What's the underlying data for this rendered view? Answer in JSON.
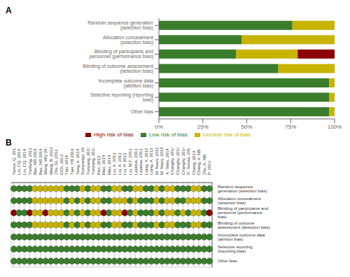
{
  "chart_data": [
    {
      "type": "bar",
      "title": "A",
      "orientation": "horizontal",
      "stacked": true,
      "grid": false,
      "legend": "bottom",
      "categories": [
        "Random sequence generation (selection bias)",
        "Allocation concealment (selection bias)",
        "Blinding of participants and personnel (performance bias)",
        "Blinding of outcome assessment (detection bias)",
        "Incomplete outcome data (attrition bias)",
        "Selective reporting (reporting bias)",
        "Other bias"
      ],
      "series": [
        {
          "name": "Low risk of bias",
          "color": "#3a7d2c",
          "values": [
            76,
            47,
            44,
            68,
            97,
            97,
            97
          ]
        },
        {
          "name": "Unclear risk of bias",
          "color": "#c8b400",
          "values": [
            24,
            53,
            35,
            32,
            3,
            3,
            3
          ]
        },
        {
          "name": "High risk of bias",
          "color": "#8b0000",
          "values": [
            0,
            0,
            21,
            0,
            0,
            0,
            0
          ]
        }
      ],
      "xlim": [
        0,
        100
      ],
      "xticks": [
        {
          "value": 0,
          "label": "0%"
        },
        {
          "value": 25,
          "label": "25%"
        },
        {
          "value": 50,
          "label": "50%"
        },
        {
          "value": 75,
          "label": "75%"
        },
        {
          "value": 100,
          "label": "100%"
        }
      ]
    },
    {
      "type": "dot_matrix",
      "title": "B",
      "grid": true,
      "colors": [
        "#c8b400",
        "#3a7d2c",
        "#8b0000"
      ],
      "x": [
        "Yance, Q. 2014",
        "Lin, CQ. 2014",
        "Lin, CQ. 2014",
        "Yunfang, 2013",
        "Bao, NR 2014",
        "Bao, NR 2014",
        "Wang, WQ 2014",
        "Wang, B. 2013",
        "Zhu, GL 2012",
        "OCh, 2013",
        "Tian, 2014",
        "Tian, YB 2014",
        "Yang, A. 2014",
        "Sumpango, 2013",
        "Yunpang, 2013",
        "Yunpang, 2013",
        "Pan, 2013",
        "Mao, 2014",
        "Mao, 2014",
        "Liu, A. 2013",
        "Liu, A. 2013",
        "Liu, P. 2013",
        "Liu, M.F. 2013",
        "Lapidus, 2013",
        "Lapidus, 2013",
        "Liang, A. 2012",
        "Liang, A. 2013",
        "M. Niazy, 2012",
        "M. Niazy, 2014",
        "A. Teles, 2014",
        "Changhy, 2014",
        "Changhy, 2014",
        "Changhy, 2014",
        "O. Sousa, 2014",
        "Cheng, 2014",
        "Cheng, A. NB",
        "Zhu, A. NB",
        "P. 2013"
      ],
      "y": [
        "Random sequence generation (selection bias)",
        "Allocation concealment (selection bias)",
        "Blinding of participants and personnel (performance bias)",
        "Blinding of outcome assessment (detection bias)",
        "Incomplete outcome data (attrition bias)",
        "Selective reporting (reporting bias)",
        "Other bias"
      ],
      "cells": [
        [
          1,
          1,
          1,
          1,
          0,
          0,
          0,
          0,
          0,
          0,
          1,
          1,
          1,
          0,
          1,
          0,
          0,
          1,
          1,
          0,
          0,
          1,
          1,
          0,
          0,
          1,
          1,
          0,
          1,
          0,
          0,
          1,
          1,
          1,
          0,
          0,
          1,
          1
        ],
        [
          1,
          1,
          1,
          1,
          0,
          0,
          0,
          0,
          0,
          0,
          1,
          0,
          1,
          0,
          1,
          0,
          0,
          1,
          1,
          0,
          0,
          0,
          1,
          0,
          1,
          1,
          1,
          0,
          1,
          0,
          0,
          1,
          1,
          0,
          0,
          0,
          1,
          1
        ],
        [
          2,
          1,
          1,
          2,
          0,
          0,
          2,
          0,
          0,
          0,
          1,
          0,
          1,
          0,
          1,
          0,
          0,
          2,
          1,
          0,
          0,
          2,
          1,
          0,
          1,
          1,
          1,
          0,
          1,
          0,
          0,
          1,
          0,
          1,
          0,
          0,
          1,
          2
        ],
        [
          1,
          1,
          1,
          1,
          0,
          0,
          0,
          0,
          0,
          0,
          1,
          0,
          1,
          0,
          1,
          0,
          0,
          1,
          1,
          0,
          0,
          1,
          1,
          0,
          1,
          1,
          1,
          0,
          1,
          0,
          0,
          1,
          1,
          1,
          0,
          0,
          1,
          1
        ],
        [
          1,
          1,
          1,
          1,
          1,
          1,
          1,
          1,
          1,
          1,
          1,
          1,
          1,
          1,
          1,
          1,
          1,
          1,
          1,
          1,
          1,
          1,
          1,
          1,
          1,
          1,
          1,
          1,
          1,
          1,
          1,
          1,
          1,
          1,
          1,
          1,
          1,
          1
        ],
        [
          1,
          1,
          1,
          1,
          1,
          1,
          1,
          1,
          1,
          1,
          1,
          1,
          1,
          1,
          1,
          1,
          1,
          1,
          1,
          1,
          1,
          1,
          1,
          1,
          1,
          1,
          1,
          1,
          1,
          1,
          1,
          1,
          1,
          1,
          1,
          1,
          1,
          1
        ],
        [
          1,
          1,
          1,
          1,
          1,
          1,
          1,
          1,
          1,
          1,
          1,
          1,
          1,
          1,
          1,
          1,
          1,
          1,
          1,
          1,
          1,
          1,
          1,
          1,
          1,
          1,
          1,
          1,
          1,
          1,
          1,
          1,
          1,
          1,
          1,
          1,
          1,
          1
        ]
      ]
    }
  ]
}
